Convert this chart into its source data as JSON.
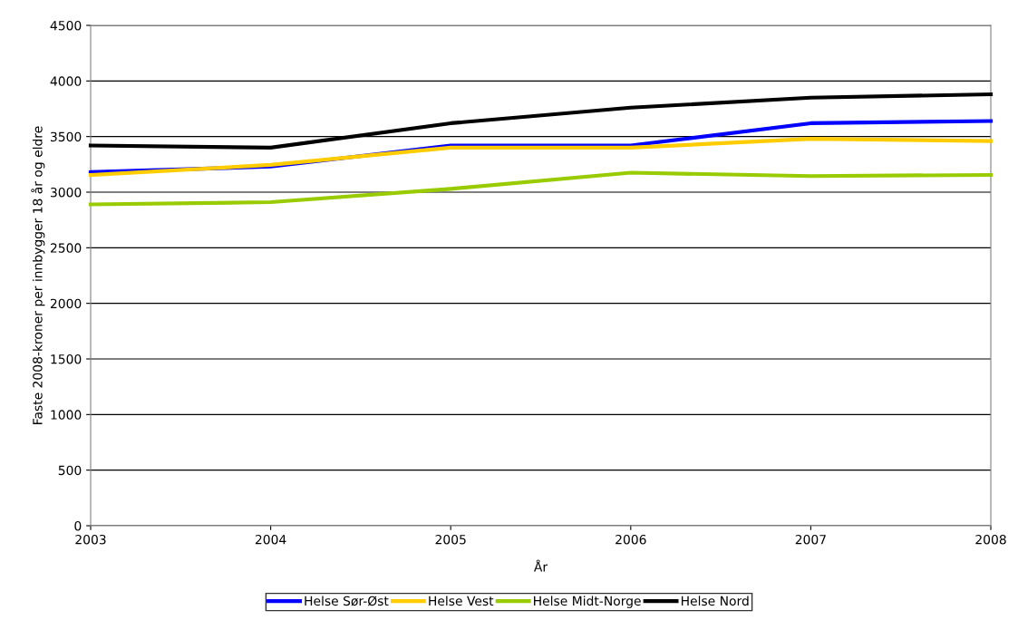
{
  "chart_data": {
    "type": "line",
    "xlabel": "År",
    "ylabel": "Faste 2008-kroner per innbygger 18 år og eldre",
    "x": [
      2003,
      2004,
      2005,
      2006,
      2007,
      2008
    ],
    "xlim": [
      2003,
      2008
    ],
    "xticks": [
      2003,
      2004,
      2005,
      2006,
      2007,
      2008
    ],
    "ylim": [
      0,
      4500
    ],
    "yticks": [
      0,
      500,
      1000,
      1500,
      2000,
      2500,
      3000,
      3500,
      4000,
      4500
    ],
    "grid": "y",
    "legend": "bottom",
    "marker": "none",
    "line_style": "solid",
    "series": [
      {
        "name": "Helse Sør-Øst",
        "color": "#0000ff",
        "values": [
          3180,
          3230,
          3420,
          3420,
          3620,
          3640
        ]
      },
      {
        "name": "Helse Vest",
        "color": "#ffcc00",
        "values": [
          3155,
          3245,
          3400,
          3400,
          3480,
          3460
        ]
      },
      {
        "name": "Helse Midt-Norge",
        "color": "#99cc00",
        "values": [
          2890,
          2910,
          3030,
          3175,
          3145,
          3155
        ]
      },
      {
        "name": "Helse Nord",
        "color": "#000000",
        "values": [
          3420,
          3400,
          3620,
          3760,
          3850,
          3880
        ]
      }
    ]
  }
}
